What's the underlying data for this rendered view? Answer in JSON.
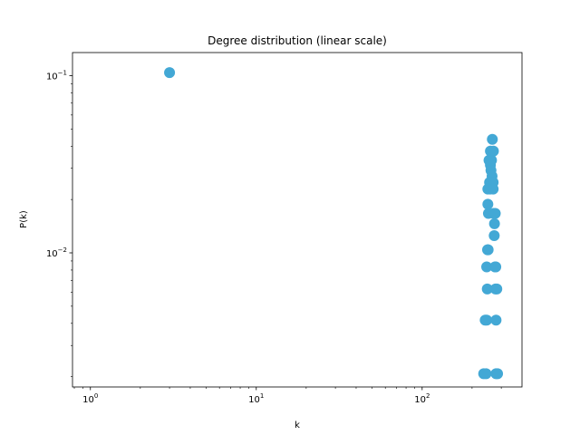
{
  "chart_data": {
    "type": "scatter",
    "title": "Degree distribution (linear scale)",
    "xlabel": "k",
    "ylabel": "P(k)",
    "xscale": "log",
    "yscale": "log",
    "xlim": [
      0.78,
      400
    ],
    "ylim": [
      0.00175,
      0.135
    ],
    "x_ticks": [
      {
        "value": 1,
        "base": "10",
        "exp": "0"
      },
      {
        "value": 10,
        "base": "10",
        "exp": "1"
      },
      {
        "value": 100,
        "base": "10",
        "exp": "2"
      }
    ],
    "y_ticks": [
      {
        "value": 0.01,
        "base": "10",
        "exp": "−2"
      },
      {
        "value": 0.1,
        "base": "10",
        "exp": "−1"
      }
    ],
    "grid": false,
    "marker_color": "#43a8d5",
    "series": [
      {
        "points": [
          {
            "x": 3,
            "y": 0.104
          },
          {
            "x": 265,
            "y": 0.0437
          },
          {
            "x": 258,
            "y": 0.0375
          },
          {
            "x": 269,
            "y": 0.0375
          },
          {
            "x": 253,
            "y": 0.0333
          },
          {
            "x": 262,
            "y": 0.0333
          },
          {
            "x": 258,
            "y": 0.0313
          },
          {
            "x": 260,
            "y": 0.0292
          },
          {
            "x": 264,
            "y": 0.0271
          },
          {
            "x": 255,
            "y": 0.025
          },
          {
            "x": 263,
            "y": 0.025
          },
          {
            "x": 268,
            "y": 0.025
          },
          {
            "x": 249,
            "y": 0.0229
          },
          {
            "x": 257,
            "y": 0.0229
          },
          {
            "x": 268,
            "y": 0.0229
          },
          {
            "x": 249,
            "y": 0.0188
          },
          {
            "x": 251,
            "y": 0.0167
          },
          {
            "x": 270,
            "y": 0.0167
          },
          {
            "x": 276,
            "y": 0.0167
          },
          {
            "x": 273,
            "y": 0.0146
          },
          {
            "x": 272,
            "y": 0.0125
          },
          {
            "x": 248,
            "y": 0.0104
          },
          {
            "x": 250,
            "y": 0.0104
          },
          {
            "x": 245,
            "y": 0.00833
          },
          {
            "x": 275,
            "y": 0.00833
          },
          {
            "x": 278,
            "y": 0.00833
          },
          {
            "x": 247,
            "y": 0.00625
          },
          {
            "x": 277,
            "y": 0.00625
          },
          {
            "x": 282,
            "y": 0.00625
          },
          {
            "x": 240,
            "y": 0.00417
          },
          {
            "x": 245,
            "y": 0.00417
          },
          {
            "x": 279,
            "y": 0.00417
          },
          {
            "x": 235,
            "y": 0.00208
          },
          {
            "x": 243,
            "y": 0.00208
          },
          {
            "x": 279,
            "y": 0.00208
          },
          {
            "x": 285,
            "y": 0.00208
          }
        ]
      }
    ]
  }
}
